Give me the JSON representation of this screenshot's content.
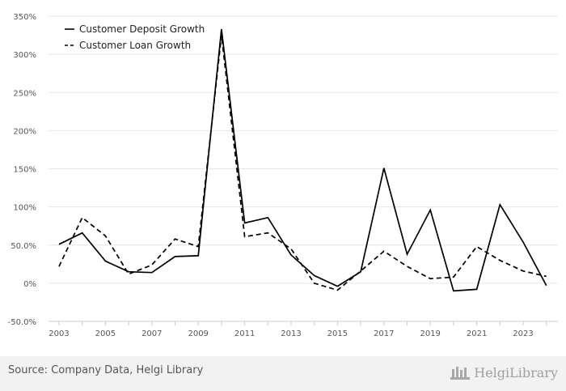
{
  "chart_data": {
    "type": "line",
    "title": "",
    "xlabel": "",
    "ylabel": "",
    "x": [
      2003,
      2004,
      2005,
      2006,
      2007,
      2008,
      2009,
      2010,
      2011,
      2012,
      2013,
      2014,
      2015,
      2016,
      2017,
      2018,
      2019,
      2020,
      2021,
      2022,
      2023,
      2024
    ],
    "x_tick_labels": [
      "2003",
      "2005",
      "2007",
      "2009",
      "2011",
      "2013",
      "2015",
      "2017",
      "2019",
      "2021",
      "2023"
    ],
    "y_ticks": [
      -50,
      0,
      50,
      100,
      150,
      200,
      250,
      300,
      350
    ],
    "y_tick_labels": [
      "-50.0%",
      "0%",
      "50.0%",
      "100%",
      "150%",
      "200%",
      "250%",
      "300%",
      "350%"
    ],
    "ylim": [
      -50,
      350
    ],
    "grid": true,
    "legend_position": "top-left",
    "series": [
      {
        "name": "Customer Deposit Growth",
        "style": "solid",
        "color": "#000000",
        "values": [
          51,
          66,
          29,
          15,
          14,
          35,
          36,
          333,
          79,
          86,
          37,
          10,
          -4,
          15,
          151,
          38,
          96,
          -10,
          -8,
          103,
          54,
          -3
        ]
      },
      {
        "name": "Customer Loan Growth",
        "style": "dashed",
        "color": "#000000",
        "values": [
          22,
          86,
          62,
          12,
          24,
          58,
          48,
          325,
          61,
          66,
          45,
          0,
          -9,
          16,
          42,
          22,
          6,
          8,
          48,
          30,
          16,
          9
        ]
      }
    ]
  },
  "footer": {
    "source": "Source: Company Data, Helgi Library",
    "logo_text": "HelgiLibrary"
  }
}
